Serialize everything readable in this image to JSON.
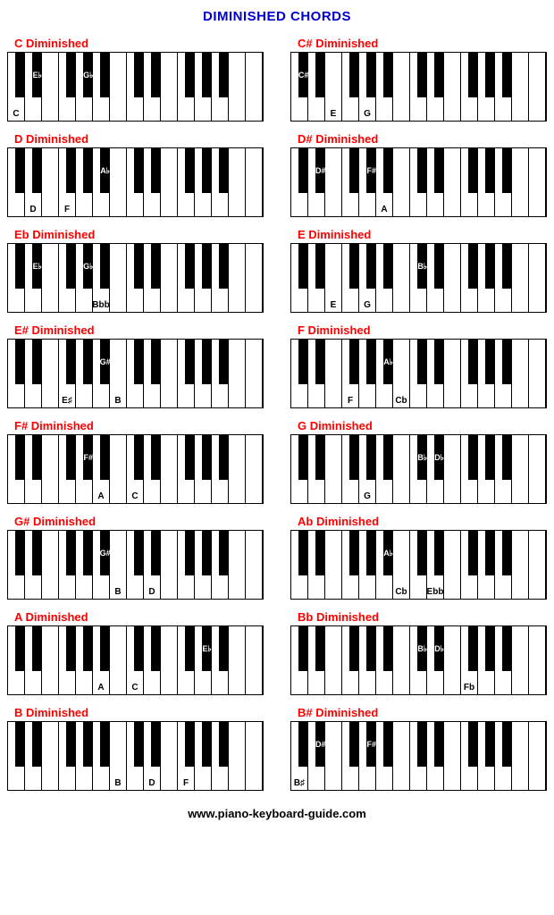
{
  "title": "DIMINISHED CHORDS",
  "footer": "www.piano-keyboard-guide.com",
  "title_color": "#0000cc",
  "chord_title_color": "#ff0000",
  "keyboard": {
    "white_keys": 15,
    "black_key_width": 11,
    "black_key_height": 50,
    "keyboard_height": 78,
    "black_key_positions_pct": [
      4.8,
      11.5,
      24.8,
      31.5,
      38.1,
      51.5,
      58.1,
      71.5,
      78.1,
      84.8
    ]
  },
  "diagrams": [
    {
      "title": "C Diminished",
      "white_labels": [
        {
          "idx": 0,
          "text": "C"
        }
      ],
      "black_labels": [
        {
          "idx": 1,
          "text": "E♭"
        },
        {
          "idx": 3,
          "text": "G♭"
        }
      ]
    },
    {
      "title": "C# Diminished",
      "white_labels": [
        {
          "idx": 2,
          "text": "E"
        },
        {
          "idx": 4,
          "text": "G"
        }
      ],
      "black_labels": [
        {
          "idx": 0,
          "text": "C#"
        }
      ]
    },
    {
      "title": "D Diminished",
      "white_labels": [
        {
          "idx": 1,
          "text": "D"
        },
        {
          "idx": 3,
          "text": "F"
        }
      ],
      "black_labels": [
        {
          "idx": 4,
          "text": "A♭"
        }
      ]
    },
    {
      "title": "D# Diminished",
      "white_labels": [
        {
          "idx": 5,
          "text": "A"
        }
      ],
      "black_labels": [
        {
          "idx": 1,
          "text": "D#"
        },
        {
          "idx": 3,
          "text": "F#"
        }
      ]
    },
    {
      "title": "Eb Diminished",
      "white_labels": [
        {
          "idx": 5,
          "text": "Bbb"
        }
      ],
      "black_labels": [
        {
          "idx": 1,
          "text": "E♭"
        },
        {
          "idx": 3,
          "text": "G♭"
        }
      ]
    },
    {
      "title": "E Diminished",
      "white_labels": [
        {
          "idx": 2,
          "text": "E"
        },
        {
          "idx": 4,
          "text": "G"
        }
      ],
      "black_labels": [
        {
          "idx": 5,
          "text": "B♭"
        }
      ]
    },
    {
      "title": "E# Diminished",
      "white_labels": [
        {
          "idx": 3,
          "text": "E♯"
        },
        {
          "idx": 6,
          "text": "B"
        }
      ],
      "black_labels": [
        {
          "idx": 4,
          "text": "G#"
        }
      ]
    },
    {
      "title": "F Diminished",
      "white_labels": [
        {
          "idx": 3,
          "text": "F"
        },
        {
          "idx": 6,
          "text": "Cb"
        }
      ],
      "black_labels": [
        {
          "idx": 4,
          "text": "A♭"
        }
      ]
    },
    {
      "title": "F# Diminished",
      "white_labels": [
        {
          "idx": 5,
          "text": "A"
        },
        {
          "idx": 7,
          "text": "C"
        }
      ],
      "black_labels": [
        {
          "idx": 3,
          "text": "F#"
        }
      ]
    },
    {
      "title": "G Diminished",
      "white_labels": [
        {
          "idx": 4,
          "text": "G"
        }
      ],
      "black_labels": [
        {
          "idx": 5,
          "text": "B♭"
        },
        {
          "idx": 6,
          "text": "D♭"
        }
      ]
    },
    {
      "title": "G# Diminished",
      "white_labels": [
        {
          "idx": 6,
          "text": "B"
        },
        {
          "idx": 8,
          "text": "D"
        }
      ],
      "black_labels": [
        {
          "idx": 4,
          "text": "G#"
        }
      ]
    },
    {
      "title": "Ab Diminished",
      "white_labels": [
        {
          "idx": 6,
          "text": "Cb"
        },
        {
          "idx": 8,
          "text": "Ebb"
        }
      ],
      "black_labels": [
        {
          "idx": 4,
          "text": "A♭"
        }
      ]
    },
    {
      "title": "A Diminished",
      "white_labels": [
        {
          "idx": 5,
          "text": "A"
        },
        {
          "idx": 7,
          "text": "C"
        }
      ],
      "black_labels": [
        {
          "idx": 8,
          "text": "E♭"
        }
      ]
    },
    {
      "title": "Bb Diminished",
      "white_labels": [
        {
          "idx": 10,
          "text": "Fb"
        }
      ],
      "black_labels": [
        {
          "idx": 5,
          "text": "B♭"
        },
        {
          "idx": 6,
          "text": "D♭"
        }
      ]
    },
    {
      "title": "B Diminished",
      "white_labels": [
        {
          "idx": 6,
          "text": "B"
        },
        {
          "idx": 8,
          "text": "D"
        },
        {
          "idx": 10,
          "text": "F"
        }
      ],
      "black_labels": []
    },
    {
      "title": "B# Diminished",
      "white_labels": [
        {
          "idx": 0,
          "text": "B♯"
        }
      ],
      "black_labels": [
        {
          "idx": 1,
          "text": "D#"
        },
        {
          "idx": 3,
          "text": "F#"
        }
      ]
    }
  ]
}
